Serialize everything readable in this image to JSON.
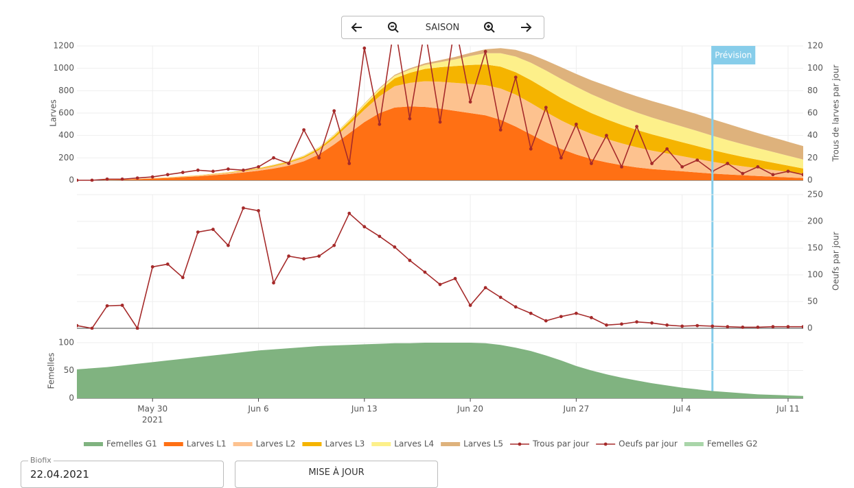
{
  "toolbar": {
    "label": "SAISON"
  },
  "form": {
    "field_label": "Biofix",
    "field_value": "22.04.2021",
    "button": "MISE À JOUR"
  },
  "chart_data": [
    {
      "type": "stacked_area",
      "ylabel": "Larves",
      "y2label": "Trous de larves par jour",
      "x": [
        "2021-05-25",
        "2021-05-26",
        "2021-05-27",
        "2021-05-28",
        "2021-05-29",
        "2021-05-30",
        "2021-05-31",
        "2021-06-01",
        "2021-06-02",
        "2021-06-03",
        "2021-06-04",
        "2021-06-05",
        "2021-06-06",
        "2021-06-07",
        "2021-06-08",
        "2021-06-09",
        "2021-06-10",
        "2021-06-11",
        "2021-06-12",
        "2021-06-13",
        "2021-06-14",
        "2021-06-15",
        "2021-06-16",
        "2021-06-17",
        "2021-06-18",
        "2021-06-19",
        "2021-06-20",
        "2021-06-21",
        "2021-06-22",
        "2021-06-23",
        "2021-06-24",
        "2021-06-25",
        "2021-06-26",
        "2021-06-27",
        "2021-06-28",
        "2021-06-29",
        "2021-06-30",
        "2021-07-01",
        "2021-07-02",
        "2021-07-03",
        "2021-07-04",
        "2021-07-05",
        "2021-07-06",
        "2021-07-07",
        "2021-07-08",
        "2021-07-09",
        "2021-07-10",
        "2021-07-11",
        "2021-07-12"
      ],
      "xlim": [
        "2021-05-25",
        "2021-07-12"
      ],
      "ylim": [
        0,
        1200
      ],
      "yticks": [
        0,
        200,
        400,
        600,
        800,
        1000,
        1200
      ],
      "y2lim": [
        0,
        120
      ],
      "y2ticks": [
        0,
        20,
        40,
        60,
        80,
        100,
        120
      ],
      "grid": true,
      "series": [
        {
          "name": "Larves L1",
          "color": "#ff7014",
          "values": [
            0,
            2,
            4,
            6,
            10,
            15,
            20,
            28,
            35,
            45,
            55,
            70,
            85,
            105,
            130,
            170,
            230,
            320,
            420,
            520,
            600,
            650,
            660,
            655,
            640,
            620,
            600,
            580,
            540,
            480,
            410,
            340,
            280,
            230,
            190,
            160,
            135,
            115,
            100,
            90,
            80,
            70,
            60,
            52,
            45,
            38,
            32,
            26,
            20
          ]
        },
        {
          "name": "Larves L2",
          "color": "#fdc28f",
          "values": [
            0,
            0,
            1,
            1,
            2,
            3,
            4,
            5,
            6,
            8,
            10,
            12,
            15,
            20,
            25,
            30,
            40,
            55,
            80,
            110,
            150,
            190,
            210,
            230,
            240,
            250,
            260,
            270,
            280,
            285,
            280,
            270,
            255,
            240,
            225,
            210,
            195,
            180,
            165,
            150,
            135,
            120,
            105,
            92,
            80,
            70,
            60,
            50,
            40
          ]
        },
        {
          "name": "Larves L3",
          "color": "#f5b400",
          "values": [
            0,
            0,
            0,
            0,
            1,
            1,
            2,
            2,
            3,
            3,
            4,
            5,
            6,
            8,
            10,
            12,
            15,
            20,
            25,
            35,
            50,
            70,
            90,
            110,
            130,
            150,
            170,
            185,
            195,
            200,
            205,
            205,
            200,
            195,
            185,
            175,
            165,
            155,
            145,
            135,
            125,
            115,
            105,
            95,
            85,
            75,
            65,
            55,
            45
          ]
        },
        {
          "name": "Larves L4",
          "color": "#fdf08a",
          "values": [
            0,
            0,
            0,
            0,
            0,
            0,
            1,
            1,
            1,
            2,
            2,
            3,
            3,
            4,
            5,
            6,
            8,
            10,
            12,
            15,
            18,
            22,
            28,
            35,
            45,
            60,
            80,
            100,
            120,
            140,
            155,
            165,
            170,
            170,
            168,
            165,
            160,
            155,
            150,
            145,
            140,
            135,
            128,
            120,
            112,
            104,
            96,
            88,
            80
          ]
        },
        {
          "name": "Larves L5",
          "color": "#deb27c",
          "values": [
            0,
            0,
            0,
            0,
            0,
            0,
            0,
            0,
            0,
            1,
            1,
            1,
            1,
            2,
            2,
            3,
            3,
            4,
            5,
            6,
            8,
            10,
            12,
            15,
            18,
            22,
            28,
            35,
            45,
            60,
            75,
            90,
            105,
            115,
            125,
            135,
            140,
            145,
            148,
            150,
            150,
            150,
            148,
            145,
            140,
            135,
            130,
            125,
            120
          ]
        },
        {
          "name": "Trous par jour",
          "color": "#a52a2a",
          "axis": "y2",
          "values": [
            0,
            0,
            1,
            1,
            2,
            3,
            5,
            7,
            9,
            8,
            10,
            9,
            12,
            20,
            15,
            45,
            20,
            62,
            15,
            118,
            50,
            140,
            55,
            135,
            52,
            140,
            70,
            115,
            45,
            92,
            28,
            65,
            20,
            50,
            15,
            40,
            12,
            48,
            15,
            28,
            12,
            18,
            8,
            15,
            6,
            12,
            5,
            8,
            5
          ]
        }
      ],
      "annotations": [
        {
          "x": "2021-07-06",
          "text": "Prévision"
        }
      ]
    },
    {
      "type": "line",
      "y2label": "Oeufs par jour",
      "x": [
        "2021-05-25",
        "2021-05-26",
        "2021-05-27",
        "2021-05-28",
        "2021-05-29",
        "2021-05-30",
        "2021-05-31",
        "2021-06-01",
        "2021-06-02",
        "2021-06-03",
        "2021-06-04",
        "2021-06-05",
        "2021-06-06",
        "2021-06-07",
        "2021-06-08",
        "2021-06-09",
        "2021-06-10",
        "2021-06-11",
        "2021-06-12",
        "2021-06-13",
        "2021-06-14",
        "2021-06-15",
        "2021-06-16",
        "2021-06-17",
        "2021-06-18",
        "2021-06-19",
        "2021-06-20",
        "2021-06-21",
        "2021-06-22",
        "2021-06-23",
        "2021-06-24",
        "2021-06-25",
        "2021-06-26",
        "2021-06-27",
        "2021-06-28",
        "2021-06-29",
        "2021-06-30",
        "2021-07-01",
        "2021-07-02",
        "2021-07-03",
        "2021-07-04",
        "2021-07-05",
        "2021-07-06",
        "2021-07-07",
        "2021-07-08",
        "2021-07-09",
        "2021-07-10",
        "2021-07-11",
        "2021-07-12"
      ],
      "xlim": [
        "2021-05-25",
        "2021-07-12"
      ],
      "y2lim": [
        0,
        250
      ],
      "y2ticks": [
        0,
        50,
        100,
        150,
        200,
        250
      ],
      "grid": true,
      "series": [
        {
          "name": "Oeufs par jour",
          "color": "#a52a2a",
          "axis": "y2",
          "values": [
            5,
            0,
            42,
            43,
            0,
            115,
            120,
            95,
            180,
            185,
            155,
            225,
            220,
            85,
            135,
            130,
            135,
            155,
            215,
            190,
            172,
            152,
            127,
            105,
            82,
            93,
            43,
            76,
            58,
            40,
            28,
            14,
            22,
            28,
            20,
            6,
            8,
            12,
            10,
            6,
            4,
            5,
            4,
            3,
            2,
            2,
            3,
            3,
            3
          ]
        }
      ]
    },
    {
      "type": "area",
      "ylabel": "Femelles",
      "x": [
        "2021-05-25",
        "2021-05-26",
        "2021-05-27",
        "2021-05-28",
        "2021-05-29",
        "2021-05-30",
        "2021-05-31",
        "2021-06-01",
        "2021-06-02",
        "2021-06-03",
        "2021-06-04",
        "2021-06-05",
        "2021-06-06",
        "2021-06-07",
        "2021-06-08",
        "2021-06-09",
        "2021-06-10",
        "2021-06-11",
        "2021-06-12",
        "2021-06-13",
        "2021-06-14",
        "2021-06-15",
        "2021-06-16",
        "2021-06-17",
        "2021-06-18",
        "2021-06-19",
        "2021-06-20",
        "2021-06-21",
        "2021-06-22",
        "2021-06-23",
        "2021-06-24",
        "2021-06-25",
        "2021-06-26",
        "2021-06-27",
        "2021-06-28",
        "2021-06-29",
        "2021-06-30",
        "2021-07-01",
        "2021-07-02",
        "2021-07-03",
        "2021-07-04",
        "2021-07-05",
        "2021-07-06",
        "2021-07-07",
        "2021-07-08",
        "2021-07-09",
        "2021-07-10",
        "2021-07-11",
        "2021-07-12"
      ],
      "xlim": [
        "2021-05-25",
        "2021-07-12"
      ],
      "ylim": [
        0,
        100
      ],
      "yticks": [
        0,
        50,
        100
      ],
      "grid": true,
      "xticks": [
        {
          "value": "2021-05-30",
          "label": "May 30"
        },
        {
          "value": "2021-06-06",
          "label": "Jun 6"
        },
        {
          "value": "2021-06-13",
          "label": "Jun 13"
        },
        {
          "value": "2021-06-20",
          "label": "Jun 20"
        },
        {
          "value": "2021-06-27",
          "label": "Jun 27"
        },
        {
          "value": "2021-07-04",
          "label": "Jul 4"
        },
        {
          "value": "2021-07-11",
          "label": "Jul 11"
        }
      ],
      "x_year": "2021",
      "series": [
        {
          "name": "Femelles G1",
          "color": "#80b380",
          "values": [
            52,
            54,
            56,
            59,
            62,
            65,
            68,
            71,
            74,
            77,
            80,
            83,
            86,
            88,
            90,
            92,
            94,
            95,
            96,
            97,
            98,
            99,
            99,
            100,
            100,
            100,
            100,
            99,
            96,
            91,
            85,
            77,
            68,
            58,
            50,
            43,
            37,
            32,
            27,
            23,
            19,
            16,
            13,
            11,
            9,
            7,
            6,
            5,
            4
          ]
        },
        {
          "name": "Femelles G2",
          "color": "#a9d5a9",
          "values": [
            null,
            null,
            null,
            null,
            null,
            null,
            null,
            null,
            null,
            null,
            null,
            null,
            null,
            null,
            null,
            null,
            null,
            null,
            null,
            null,
            null,
            null,
            null,
            null,
            null,
            null,
            null,
            null,
            null,
            null,
            null,
            null,
            null,
            null,
            null,
            null,
            null,
            null,
            null,
            null,
            null,
            null,
            null,
            null,
            null,
            null,
            null,
            null,
            null
          ]
        }
      ]
    }
  ]
}
